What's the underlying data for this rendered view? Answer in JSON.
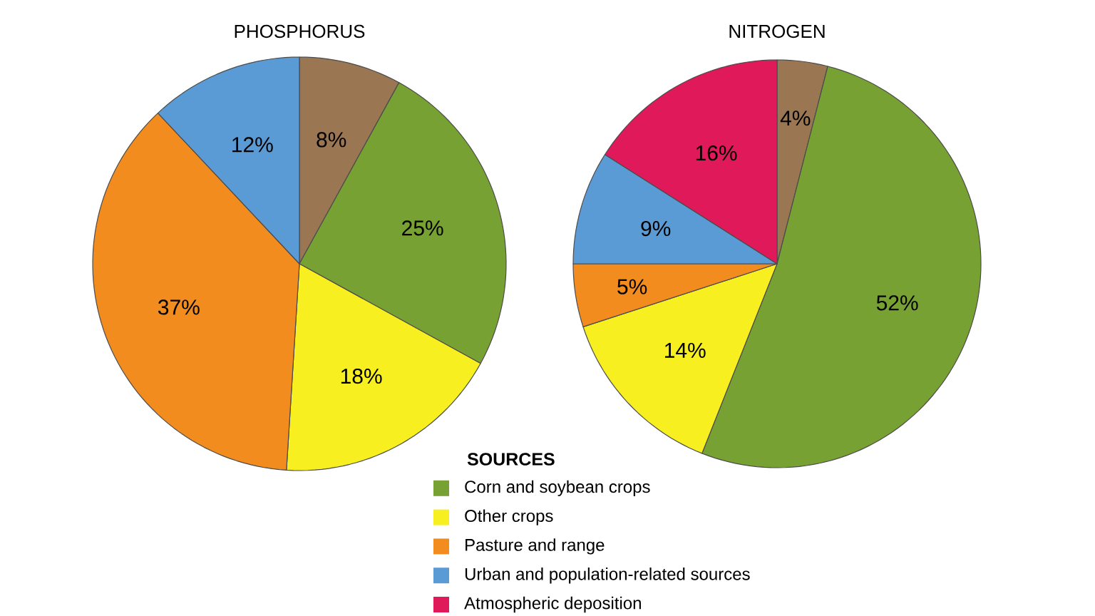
{
  "chart_data": [
    {
      "type": "pie",
      "title": "PHOSPHORUS",
      "categories": [
        null,
        null,
        null,
        null,
        null
      ],
      "values": [
        8,
        25,
        18,
        37,
        12
      ],
      "colors": [
        "#9b7653",
        "#77a132",
        "#f7ef1f",
        "#f28c1e",
        "#5b9bd5"
      ],
      "value_labels": [
        "8%",
        "25%",
        "18%",
        "37%",
        "12%"
      ],
      "legend": false
    },
    {
      "type": "pie",
      "title": "NITROGEN",
      "legend_title": "SOURCES",
      "categories": [
        null,
        "Corn and soybean crops",
        "Other crops",
        "Pasture and range",
        "Urban and population-related sources",
        "Atmospheric deposition"
      ],
      "values": [
        4,
        52,
        14,
        5,
        9,
        16
      ],
      "colors": [
        "#9b7653",
        "#77a132",
        "#f7ef1f",
        "#f28c1e",
        "#5b9bd5",
        "#e0195a"
      ],
      "value_labels": [
        "4%",
        "52%",
        "14%",
        "5%",
        "9%",
        "16%"
      ],
      "legend": "bottom"
    }
  ]
}
